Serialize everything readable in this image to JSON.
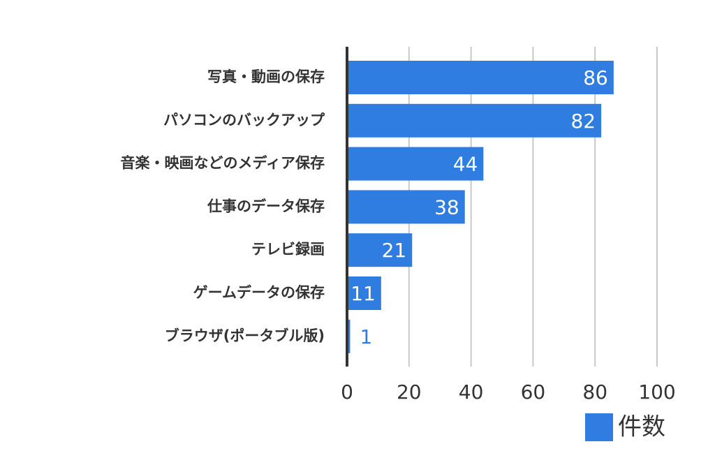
{
  "chart_data": {
    "type": "bar",
    "orientation": "horizontal",
    "categories": [
      "写真・動画の保存",
      "パソコンのバックアップ",
      "音楽・映画などのメディア保存",
      "仕事のデータ保存",
      "テレビ録画",
      "ゲームデータの保存",
      "ブラウザ(ポータブル版)"
    ],
    "series": [
      {
        "name": "件数",
        "color": "#2f7de1",
        "values": [
          86,
          82,
          44,
          38,
          21,
          11,
          1
        ]
      }
    ],
    "xlim": [
      0,
      100
    ],
    "xticks": [
      0,
      20,
      40,
      60,
      80,
      100
    ],
    "grid": true,
    "legend": "bottom-right"
  }
}
